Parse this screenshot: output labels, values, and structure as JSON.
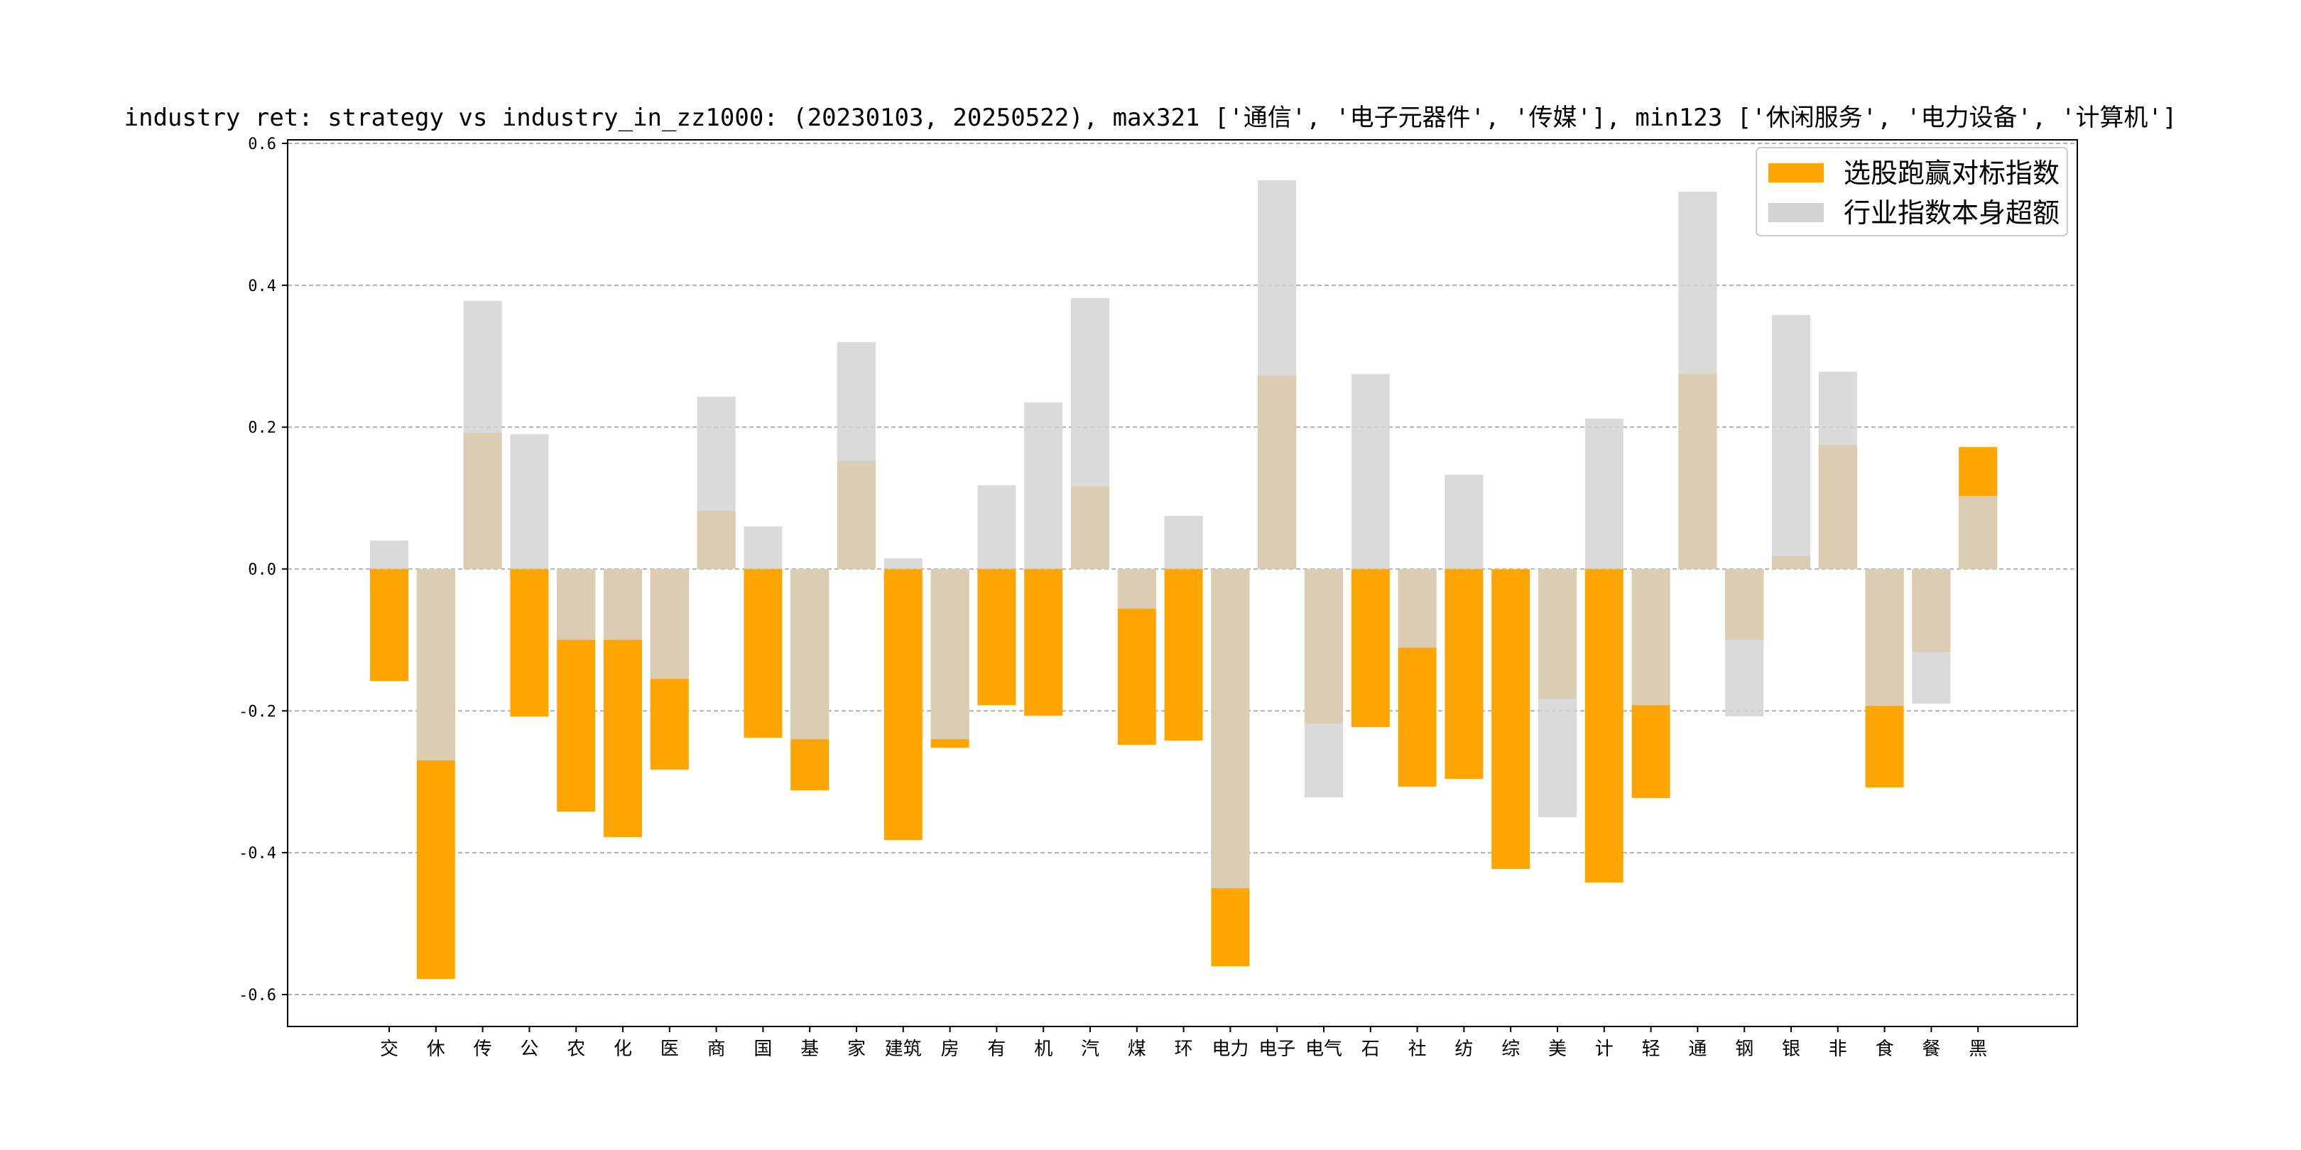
{
  "chart_data": {
    "type": "bar",
    "title": "industry ret: strategy vs industry_in_zz1000: (20230103, 20250522), max321 ['通信', '电子元器件', '传媒'], min123 ['休闲服务', '电力设备', '计算机']",
    "xlabel": "",
    "ylabel": "",
    "ylim": [
      -0.645,
      0.605
    ],
    "yticks": [
      0.6,
      0.4,
      0.2,
      0.0,
      -0.2,
      -0.4,
      -0.6
    ],
    "ytick_labels": [
      "0.6",
      "0.4",
      "0.2",
      "0.0",
      "-0.2",
      "-0.4",
      "-0.6"
    ],
    "grid": "y-dashed",
    "legend_position": "top-right",
    "categories": [
      "交",
      "休",
      "传",
      "公",
      "农",
      "化",
      "医",
      "商",
      "国",
      "基",
      "家",
      "建筑",
      "房",
      "有",
      "机",
      "汽",
      "煤",
      "环",
      "电力",
      "电子",
      "电气",
      "石",
      "社",
      "纺",
      "综",
      "美",
      "计",
      "轻",
      "通",
      "钢",
      "银",
      "非",
      "食",
      "餐",
      "黑"
    ],
    "series": [
      {
        "name": "选股跑赢对标指数",
        "color": "#FFA500",
        "values": [
          -0.158,
          -0.578,
          0.192,
          -0.208,
          -0.342,
          -0.378,
          -0.283,
          0.082,
          -0.238,
          -0.312,
          0.152,
          -0.382,
          -0.252,
          -0.192,
          -0.207,
          0.116,
          -0.248,
          -0.242,
          -0.56,
          0.273,
          -0.218,
          -0.223,
          -0.307,
          -0.296,
          -0.423,
          -0.183,
          -0.442,
          -0.323,
          0.275,
          -0.1,
          0.018,
          0.175,
          -0.308,
          -0.117,
          0.172
        ]
      },
      {
        "name": "行业指数本身超额",
        "color": "#D3D3D3",
        "values": [
          0.04,
          -0.27,
          0.378,
          0.19,
          -0.1,
          -0.1,
          -0.155,
          0.243,
          0.06,
          -0.24,
          0.32,
          0.015,
          -0.24,
          0.118,
          0.235,
          0.382,
          -0.056,
          0.075,
          -0.45,
          0.548,
          -0.322,
          0.275,
          -0.111,
          0.133,
          0.0,
          -0.35,
          0.212,
          -0.192,
          0.532,
          -0.208,
          0.358,
          0.278,
          -0.193,
          -0.19,
          0.103
        ]
      }
    ]
  }
}
